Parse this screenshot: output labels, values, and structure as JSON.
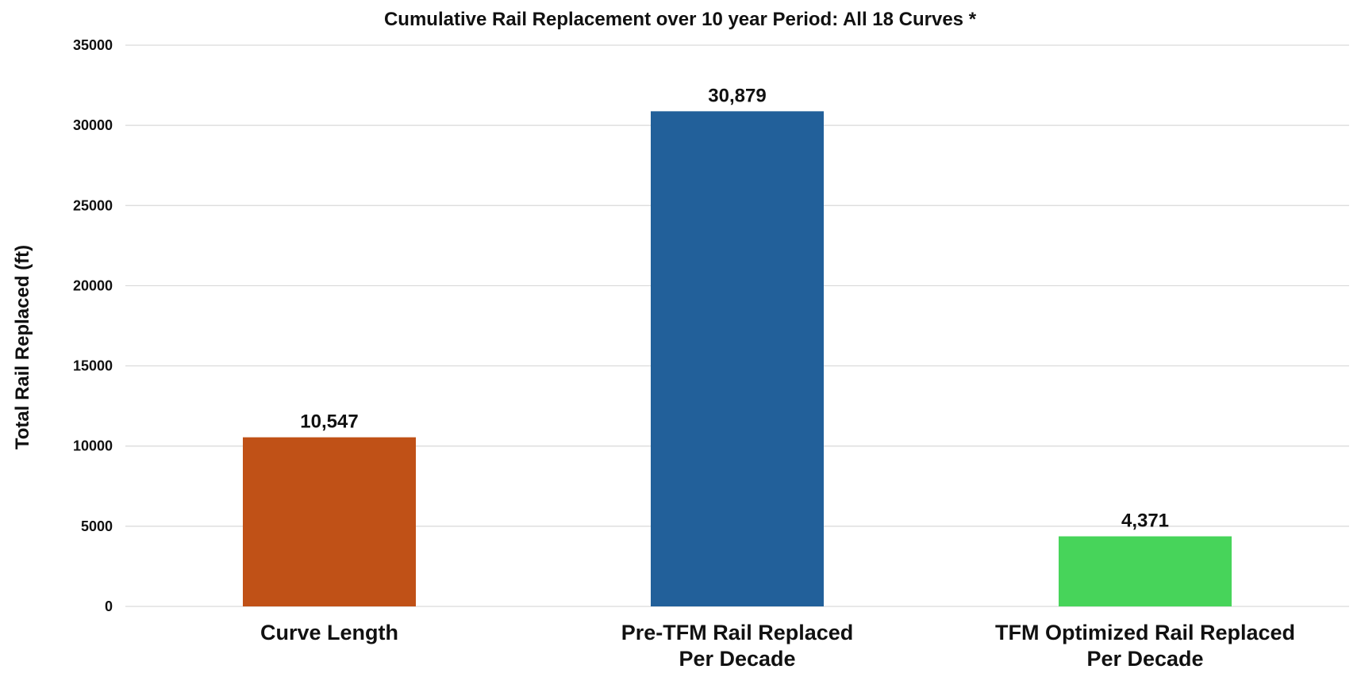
{
  "chart_data": {
    "type": "bar",
    "title": "Cumulative Rail Replacement over 10 year Period: All 18 Curves *",
    "xlabel": "",
    "ylabel": "Total Rail Replaced (ft)",
    "ylim": [
      0,
      35000
    ],
    "yticks": [
      "0",
      "5000",
      "10000",
      "15000",
      "20000",
      "25000",
      "30000",
      "35000"
    ],
    "categories": [
      [
        "Curve Length"
      ],
      [
        "Pre-TFM Rail Replaced",
        "Per Decade"
      ],
      [
        "TFM Optimized Rail Replaced",
        "Per Decade"
      ]
    ],
    "values": [
      10547,
      30879,
      4371
    ],
    "data_labels": [
      "10,547",
      "30,879",
      "4,371"
    ],
    "colors": [
      "#C05117",
      "#22609A",
      "#47D45A"
    ],
    "grid": true,
    "legend": "none"
  }
}
